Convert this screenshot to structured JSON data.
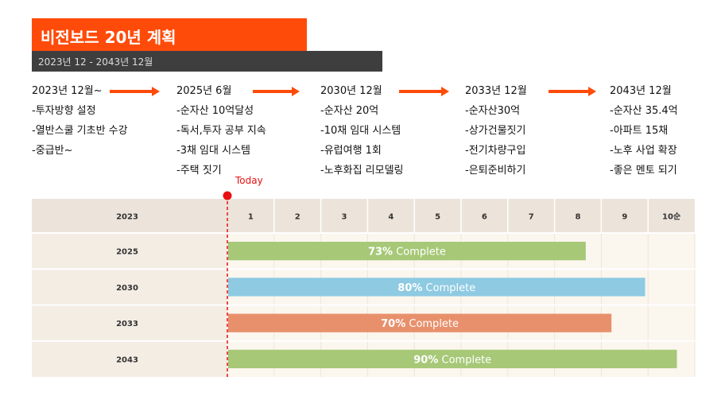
{
  "title": "비전보드 20년 계획",
  "subtitle": "2023년 12 - 2043년 12월",
  "milestones": [
    {
      "date": "2023년 12월~",
      "items": [
        "-투자방향 설정",
        "-열반스쿨 기초반 수강",
        "-중급반~"
      ]
    },
    {
      "date": "2025년 6월",
      "items": [
        "-순자산 10억달성",
        "-독서,투자 공부 지속",
        "-3채 임대 시스템",
        "-주택 짓기"
      ]
    },
    {
      "date": "2030년 12월",
      "items": [
        "-순자산 20억",
        "-10채 임대 시스템",
        "-유럽여행 1회",
        "-노후화집 리모델링"
      ]
    },
    {
      "date": "2033년 12월",
      "items": [
        "-순자산30억",
        "-상가건물짓기",
        "-전기차량구입",
        "-은퇴준비하기"
      ]
    },
    {
      "date": "2043년 12월",
      "items": [
        "-순자산 35.4억",
        "-아파트 15채",
        "-노후 사업 확장",
        "-좋은 멘토 되기"
      ]
    }
  ],
  "colors": {
    "accent": "#ff4b0a",
    "subtitle_bg": "#3e3e3e",
    "today": "#e81010",
    "header_bg": "#ece4da",
    "row_bg": "#f4ede4",
    "chart_bg": "#fbf6ee"
  },
  "chart_data": {
    "type": "bar",
    "orientation": "horizontal",
    "today_label": "Today",
    "today_value": 0,
    "header_label": "2023",
    "columns": [
      "1",
      "2",
      "3",
      "4",
      "5",
      "6",
      "7",
      "8",
      "9",
      "10순"
    ],
    "xlim": [
      0,
      10
    ],
    "rows": [
      {
        "label": "2025",
        "start": 0,
        "end": 7.65,
        "percent": "73%",
        "suffix": " Complete",
        "color": "#a6c877"
      },
      {
        "label": "2030",
        "start": 0,
        "end": 8.92,
        "percent": "80%",
        "suffix": " Complete",
        "color": "#8ecae2"
      },
      {
        "label": "2033",
        "start": 0,
        "end": 8.2,
        "percent": "70%",
        "suffix": " Complete",
        "color": "#e8906c"
      },
      {
        "label": "2043",
        "start": 0,
        "end": 9.6,
        "percent": "90%",
        "suffix": " Complete",
        "color": "#a6c877"
      }
    ]
  }
}
